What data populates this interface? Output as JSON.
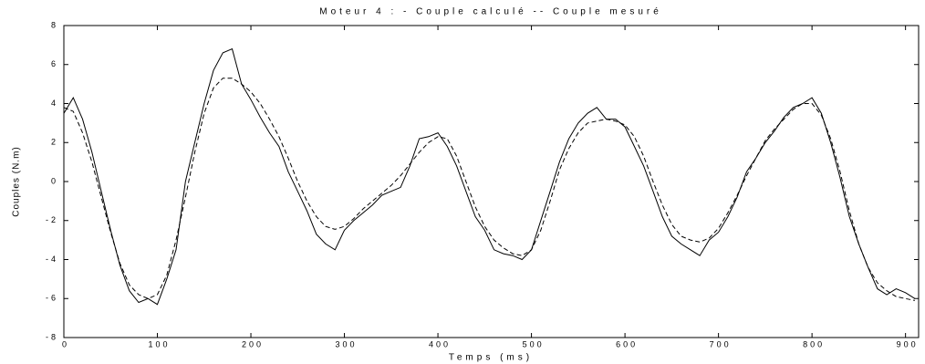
{
  "chart_data": {
    "type": "line",
    "title": "Moteur 4 : - Couple calculé -- Couple mesuré",
    "x_label": "Temps (ms)",
    "y_label": "Couples (N.m)",
    "x": [
      0,
      10,
      20,
      30,
      40,
      50,
      60,
      70,
      80,
      90,
      100,
      110,
      120,
      130,
      140,
      150,
      160,
      170,
      180,
      190,
      200,
      210,
      220,
      230,
      240,
      250,
      260,
      270,
      280,
      290,
      300,
      310,
      320,
      330,
      340,
      350,
      360,
      370,
      380,
      390,
      400,
      410,
      420,
      430,
      440,
      450,
      460,
      470,
      480,
      490,
      500,
      510,
      520,
      530,
      540,
      550,
      560,
      570,
      580,
      590,
      600,
      610,
      620,
      630,
      640,
      650,
      660,
      670,
      680,
      690,
      700,
      710,
      720,
      730,
      740,
      750,
      760,
      770,
      780,
      790,
      800,
      810,
      820,
      830,
      840,
      850,
      860,
      870,
      880,
      890,
      900,
      910
    ],
    "series": [
      {
        "color": "#000000",
        "dash": false,
        "values": [
          3.5,
          4.3,
          3.2,
          1.5,
          -0.5,
          -2.5,
          -4.3,
          -5.6,
          -6.2,
          -6.0,
          -6.3,
          -5.0,
          -3.5,
          0.0,
          2.0,
          4.0,
          5.7,
          6.6,
          6.8,
          5.0,
          4.2,
          3.3,
          2.5,
          1.8,
          0.5,
          -0.5,
          -1.5,
          -2.7,
          -3.2,
          -3.5,
          -2.5,
          -2.0,
          -1.6,
          -1.2,
          -0.7,
          -0.5,
          -0.3,
          0.8,
          2.2,
          2.3,
          2.5,
          1.8,
          0.8,
          -0.5,
          -1.8,
          -2.5,
          -3.5,
          -3.7,
          -3.8,
          -4.0,
          -3.5,
          -2.0,
          -0.5,
          1.0,
          2.2,
          3.0,
          3.5,
          3.8,
          3.2,
          3.2,
          2.8,
          1.8,
          0.8,
          -0.5,
          -1.8,
          -2.8,
          -3.2,
          -3.5,
          -3.8,
          -3.0,
          -2.6,
          -1.8,
          -0.8,
          0.5,
          1.2,
          2.0,
          2.6,
          3.3,
          3.8,
          4.0,
          4.3,
          3.5,
          2.0,
          0.2,
          -1.8,
          -3.2,
          -4.4,
          -5.5,
          -5.8,
          -5.5,
          -5.7,
          -6.0
        ]
      },
      {
        "color": "#000000",
        "dash": true,
        "values": [
          3.8,
          3.6,
          2.5,
          1.0,
          -0.8,
          -2.6,
          -4.2,
          -5.3,
          -5.8,
          -6.0,
          -5.8,
          -4.8,
          -3.0,
          -0.8,
          1.5,
          3.5,
          4.8,
          5.3,
          5.3,
          5.0,
          4.6,
          4.0,
          3.2,
          2.3,
          1.2,
          0.0,
          -1.0,
          -1.8,
          -2.3,
          -2.45,
          -2.3,
          -1.9,
          -1.4,
          -1.0,
          -0.6,
          -0.2,
          0.3,
          0.9,
          1.5,
          2.0,
          2.3,
          2.2,
          1.3,
          0.0,
          -1.3,
          -2.3,
          -3.0,
          -3.4,
          -3.7,
          -3.8,
          -3.5,
          -2.5,
          -1.0,
          0.6,
          1.7,
          2.5,
          3.0,
          3.1,
          3.2,
          3.1,
          2.9,
          2.3,
          1.3,
          0.0,
          -1.2,
          -2.2,
          -2.8,
          -3.0,
          -3.1,
          -2.9,
          -2.4,
          -1.6,
          -0.7,
          0.3,
          1.2,
          2.1,
          2.7,
          3.2,
          3.7,
          4.0,
          4.0,
          3.4,
          2.2,
          0.5,
          -1.5,
          -3.2,
          -4.4,
          -5.2,
          -5.6,
          -5.9,
          -6.0,
          -6.1
        ]
      }
    ],
    "xlim": [
      0,
      914
    ],
    "ylim": [
      -8,
      8
    ],
    "xticks": [
      0,
      100,
      200,
      300,
      400,
      500,
      600,
      700,
      800,
      900
    ],
    "yticks": [
      -8,
      -6,
      -4,
      -2,
      0,
      2,
      4,
      6,
      8
    ]
  }
}
